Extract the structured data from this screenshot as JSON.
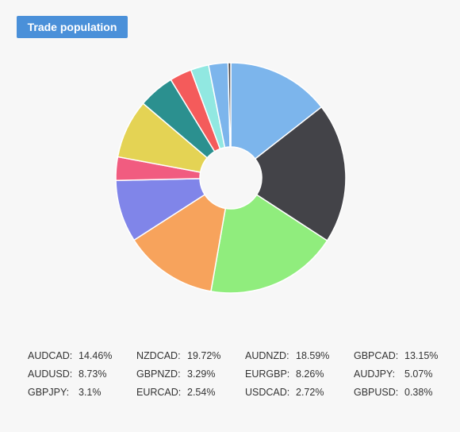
{
  "header": {
    "title": "Trade population"
  },
  "colors": {
    "background": "#f7f7f7",
    "button": "#4a90d9",
    "slice_stroke": "#ffffff"
  },
  "chart_data": {
    "type": "pie",
    "style": "donut",
    "title": "",
    "slices": [
      {
        "label": "AUDCAD",
        "value": 14.46,
        "display": "14.46%",
        "color": "#7cb5ec"
      },
      {
        "label": "NZDCAD",
        "value": 19.72,
        "display": "19.72%",
        "color": "#434348"
      },
      {
        "label": "AUDNZD",
        "value": 18.59,
        "display": "18.59%",
        "color": "#90ed7d"
      },
      {
        "label": "GBPCAD",
        "value": 13.15,
        "display": "13.15%",
        "color": "#f7a35c"
      },
      {
        "label": "AUDUSD",
        "value": 8.73,
        "display": "8.73%",
        "color": "#8085e9"
      },
      {
        "label": "GBPNZD",
        "value": 3.29,
        "display": "3.29%",
        "color": "#f15c80"
      },
      {
        "label": "EURGBP",
        "value": 8.26,
        "display": "8.26%",
        "color": "#e4d354"
      },
      {
        "label": "AUDJPY",
        "value": 5.07,
        "display": "5.07%",
        "color": "#2b908f"
      },
      {
        "label": "GBPJPY",
        "value": 3.1,
        "display": "3.1%",
        "color": "#f45b5b"
      },
      {
        "label": "EURCAD",
        "value": 2.54,
        "display": "2.54%",
        "color": "#91e8e1"
      },
      {
        "label": "USDCAD",
        "value": 2.72,
        "display": "2.72%",
        "color": "#7cb5ec"
      },
      {
        "label": "GBPUSD",
        "value": 0.38,
        "display": "0.38%",
        "color": "#434348"
      }
    ],
    "legend": {
      "placement": "bottom",
      "columns": 4
    }
  }
}
